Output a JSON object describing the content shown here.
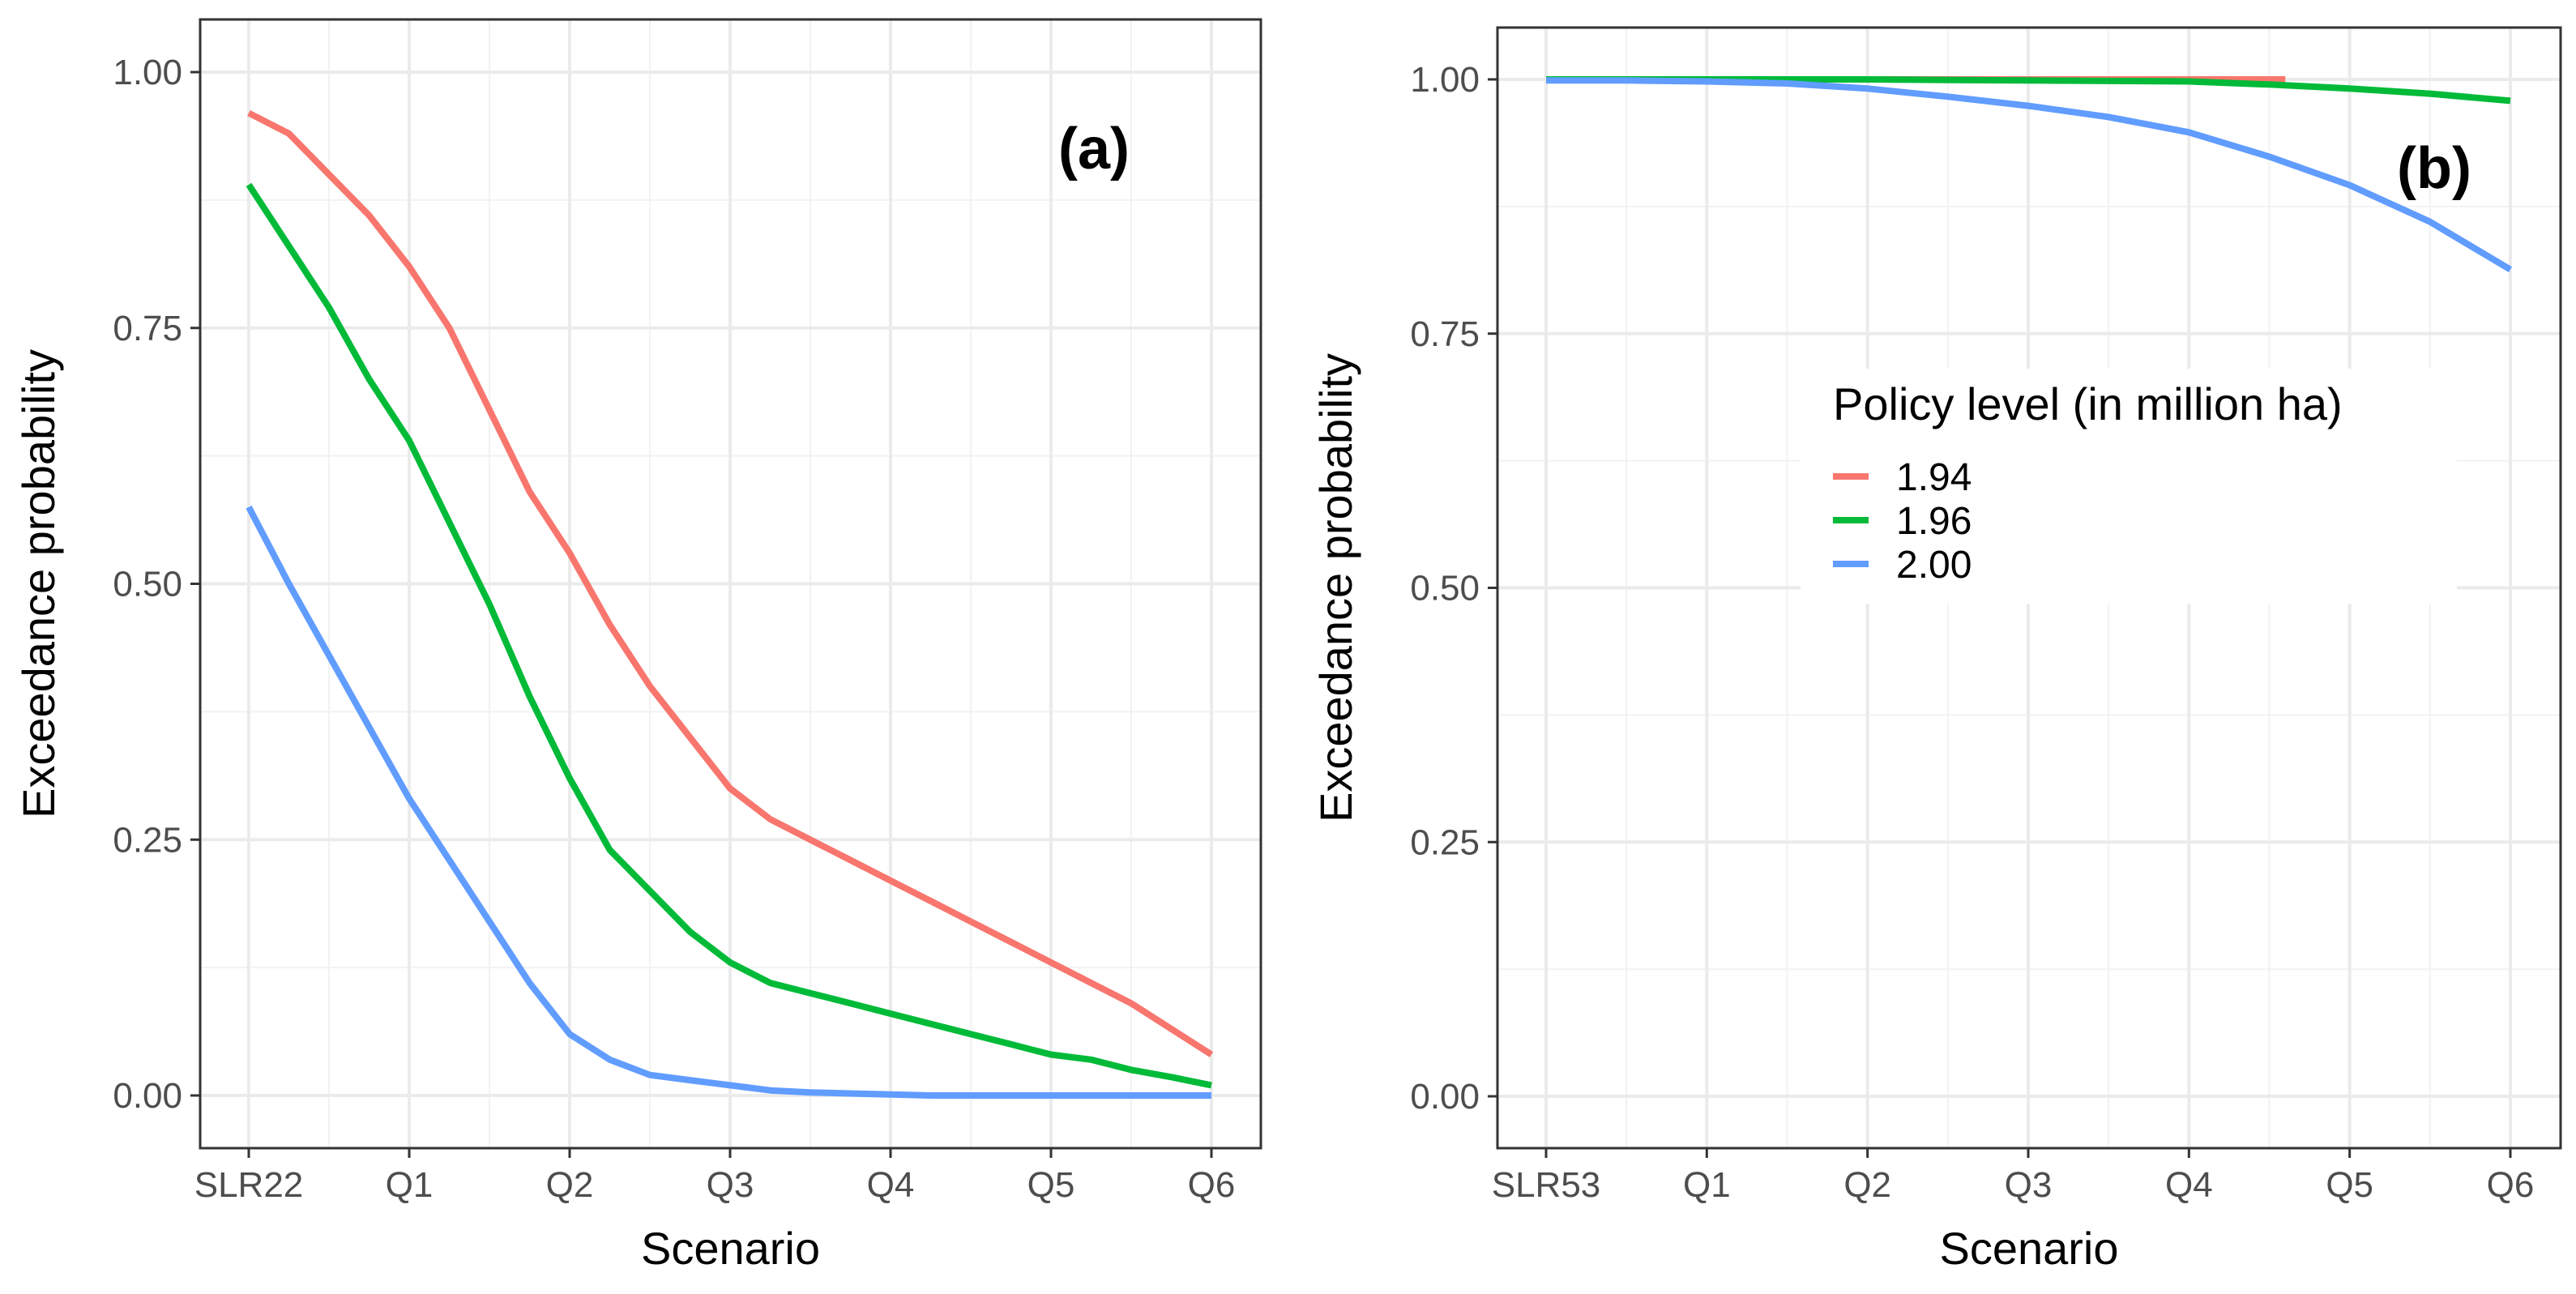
{
  "chart_data": [
    {
      "type": "line",
      "panel_label": "(a)",
      "xlabel": "Scenario",
      "ylabel": "Exceedance probability",
      "categories": [
        "SLR22",
        "Q1",
        "Q2",
        "Q3",
        "Q4",
        "Q5",
        "Q6"
      ],
      "ylim": [
        0,
        1
      ],
      "yticks": [
        "0.00",
        "0.25",
        "0.50",
        "0.75",
        "1.00"
      ],
      "grid": true,
      "series": [
        {
          "name": "1.94",
          "color": "#F8766D",
          "x": [
            0,
            0.25,
            0.5,
            0.75,
            1,
            1.25,
            1.5,
            1.75,
            2,
            2.25,
            2.5,
            2.75,
            3,
            3.25,
            3.5,
            3.75,
            4,
            4.25,
            4.5,
            4.75,
            5,
            5.25,
            5.5,
            5.75,
            6
          ],
          "values": [
            0.96,
            0.94,
            0.9,
            0.86,
            0.81,
            0.75,
            0.67,
            0.59,
            0.53,
            0.46,
            0.4,
            0.35,
            0.3,
            0.27,
            0.25,
            0.23,
            0.21,
            0.19,
            0.17,
            0.15,
            0.13,
            0.11,
            0.09,
            0.065,
            0.04
          ]
        },
        {
          "name": "1.96",
          "color": "#00BA38",
          "x": [
            0,
            0.25,
            0.5,
            0.75,
            1,
            1.25,
            1.5,
            1.75,
            2,
            2.25,
            2.5,
            2.75,
            3,
            3.25,
            3.5,
            3.75,
            4,
            4.25,
            4.5,
            4.75,
            5,
            5.25,
            5.5,
            5.75,
            6
          ],
          "values": [
            0.89,
            0.83,
            0.77,
            0.7,
            0.64,
            0.56,
            0.48,
            0.39,
            0.31,
            0.24,
            0.2,
            0.16,
            0.13,
            0.11,
            0.1,
            0.09,
            0.08,
            0.07,
            0.06,
            0.05,
            0.04,
            0.035,
            0.025,
            0.018,
            0.01
          ]
        },
        {
          "name": "2.00",
          "color": "#619CFF",
          "x": [
            0,
            0.25,
            0.5,
            0.75,
            1,
            1.25,
            1.5,
            1.75,
            2,
            2.25,
            2.5,
            2.75,
            3,
            3.25,
            3.5,
            3.75,
            4,
            4.25,
            4.5,
            4.75,
            5,
            5.25,
            5.5,
            5.75,
            6
          ],
          "values": [
            0.575,
            0.5,
            0.43,
            0.36,
            0.29,
            0.23,
            0.17,
            0.11,
            0.06,
            0.035,
            0.02,
            0.015,
            0.01,
            0.005,
            0.003,
            0.002,
            0.001,
            0.0,
            0.0,
            0.0,
            0.0,
            0.0,
            0.0,
            0.0,
            0.0
          ]
        }
      ]
    },
    {
      "type": "line",
      "panel_label": "(b)",
      "xlabel": "Scenario",
      "ylabel": "Exceedance probability",
      "categories": [
        "SLR53",
        "Q1",
        "Q2",
        "Q3",
        "Q4",
        "Q5",
        "Q6"
      ],
      "ylim": [
        0,
        1
      ],
      "yticks": [
        "0.00",
        "0.25",
        "0.50",
        "0.75",
        "1.00"
      ],
      "grid": true,
      "legend": {
        "title": "Policy level (in million ha)",
        "position": "center-right",
        "entries": [
          "1.94",
          "1.96",
          "2.00"
        ]
      },
      "series": [
        {
          "name": "1.94",
          "color": "#F8766D",
          "x": [
            0,
            1,
            2,
            3,
            4,
            4.6
          ],
          "values": [
            1.0,
            1.0,
            1.0,
            1.0,
            1.0,
            1.0
          ]
        },
        {
          "name": "1.96",
          "color": "#00BA38",
          "x": [
            0,
            1,
            2,
            3,
            4,
            4.5,
            5,
            5.5,
            6
          ],
          "values": [
            1.0,
            1.0,
            1.0,
            0.999,
            0.998,
            0.995,
            0.991,
            0.986,
            0.979
          ]
        },
        {
          "name": "2.00",
          "color": "#619CFF",
          "x": [
            0,
            0.5,
            1,
            1.5,
            2,
            2.5,
            3,
            3.5,
            4,
            4.5,
            5,
            5.5,
            6
          ],
          "values": [
            0.999,
            0.999,
            0.998,
            0.996,
            0.991,
            0.983,
            0.974,
            0.963,
            0.948,
            0.924,
            0.896,
            0.86,
            0.813
          ]
        }
      ]
    }
  ]
}
